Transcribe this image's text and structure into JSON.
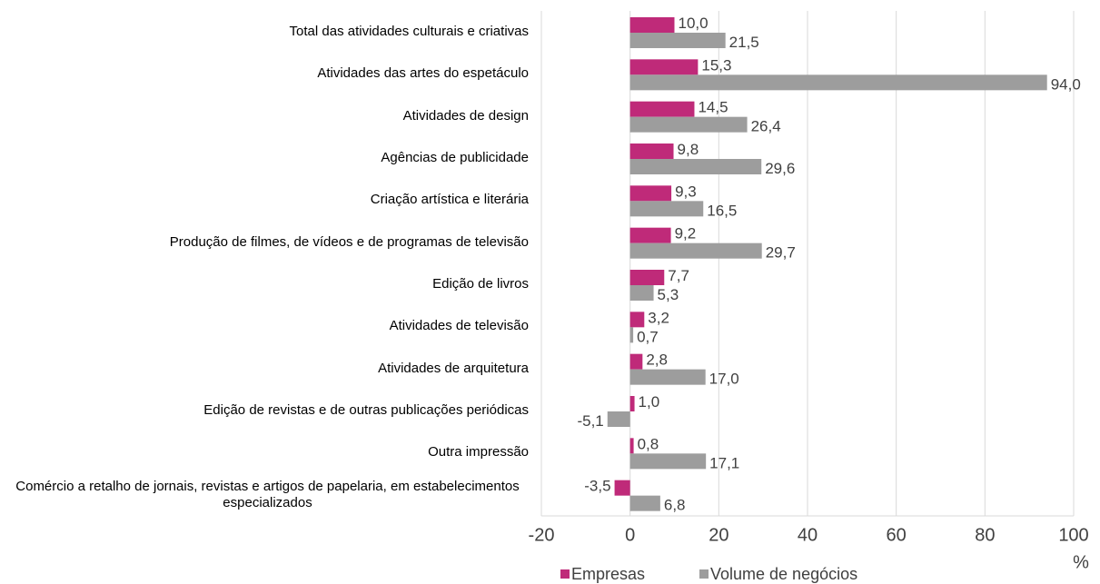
{
  "chart_data": {
    "type": "hbar",
    "categories": [
      "Total das atividades culturais e criativas",
      "Atividades das artes do espetáculo",
      "Atividades de design",
      "Agências de publicidade",
      "Criação artística e literária",
      "Produção de filmes, de vídeos e de programas de televisão",
      "Edição de livros",
      "Atividades de televisão",
      "Atividades de arquitetura",
      "Edição de revistas e de outras publicações periódicas",
      "Outra impressão",
      "Comércio a retalho de jornais, revistas e artigos de papelaria, em estabelecimentos especializados"
    ],
    "series": [
      {
        "name": "Empresas",
        "color": "#bf2a79",
        "values": [
          10.0,
          15.3,
          14.5,
          9.8,
          9.3,
          9.2,
          7.7,
          3.2,
          2.8,
          1.0,
          0.8,
          -3.5
        ],
        "value_labels": [
          "10,0",
          "15,3",
          "14,5",
          "9,8",
          "9,3",
          "9,2",
          "7,7",
          "3,2",
          "2,8",
          "1,0",
          "0,8",
          "-3,5"
        ]
      },
      {
        "name": "Volume de negócios",
        "color": "#9d9d9d",
        "values": [
          21.5,
          94.0,
          26.4,
          29.6,
          16.5,
          29.7,
          5.3,
          0.7,
          17.0,
          -5.1,
          17.1,
          6.8
        ],
        "value_labels": [
          "21,5",
          "94,0",
          "26,4",
          "29,6",
          "16,5",
          "29,7",
          "5,3",
          "0,7",
          "17,0",
          "-5,1",
          "17,1",
          "6,8"
        ]
      }
    ],
    "xlim": [
      -20,
      100
    ],
    "xticks": [
      -20,
      0,
      20,
      40,
      60,
      80,
      100
    ],
    "xlabel": "%",
    "grid": true,
    "legend": "bottom"
  }
}
